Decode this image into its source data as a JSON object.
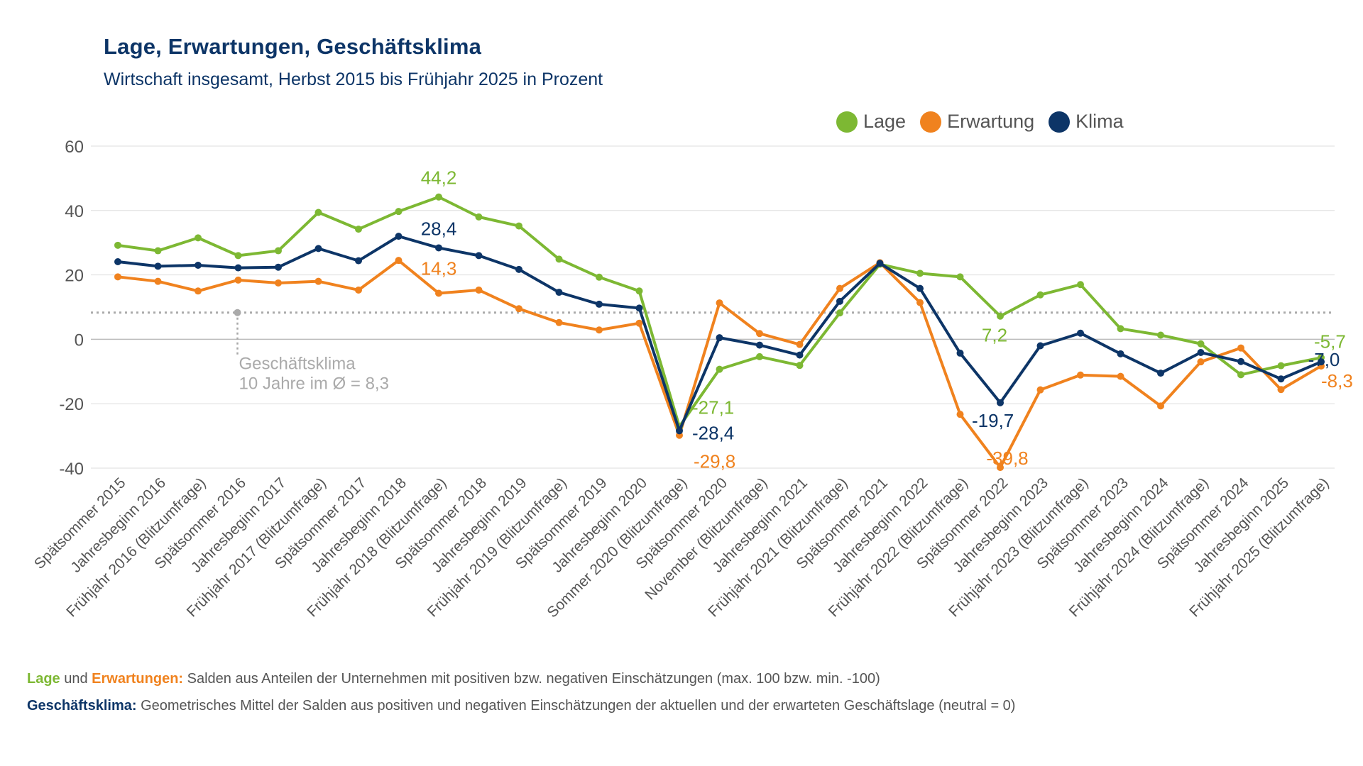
{
  "header": {
    "title": "Lage, Erwartungen, Geschäftsklima",
    "subtitle": "Wirtschaft insgesamt, Herbst 2015 bis Frühjahr 2025 in Prozent"
  },
  "colors": {
    "lage": "#7db833",
    "erwartung": "#f0821e",
    "klima": "#0d3567",
    "grid": "#dddddd",
    "axis_text": "#555555",
    "average": "#aaaaaa"
  },
  "legend": [
    {
      "key": "lage",
      "label": "Lage"
    },
    {
      "key": "erwartung",
      "label": "Erwartung"
    },
    {
      "key": "klima",
      "label": "Klima"
    }
  ],
  "footnotes": {
    "line1_key1": "Lage",
    "line1_and": " und ",
    "line1_key2": "Erwartungen:",
    "line1_text": " Salden aus Anteilen der Unternehmen mit positiven bzw. negativen Einschätzungen (max. 100 bzw. min. -100)",
    "line2_key": "Geschäftsklima:",
    "line2_text": " Geometrisches Mittel der Salden aus positiven und negativen Einschätzungen der aktuellen und der erwarteten Geschäftslage (neutral = 0)"
  },
  "chart_data": {
    "type": "line",
    "title": "Lage, Erwartungen, Geschäftsklima",
    "subtitle": "Wirtschaft insgesamt, Herbst 2015 bis Frühjahr 2025 in Prozent",
    "ylim": [
      -40,
      60
    ],
    "yticks": [
      -40,
      -20,
      0,
      20,
      40,
      60
    ],
    "ytick_labels": [
      "-40",
      "-20",
      "0",
      "20",
      "40",
      "60"
    ],
    "grid": true,
    "legend_position": "top-right",
    "categories": [
      "Spätsommer 2015",
      "Jahresbeginn 2016",
      "Frühjahr 2016 (Blitzumfrage)",
      "Spätsommer 2016",
      "Jahresbeginn 2017",
      "Frühjahr 2017 (Blitzumfrage)",
      "Spätsommer 2017",
      "Jahresbeginn 2018",
      "Frühjahr 2018 (Blitzumfrage)",
      "Spätsommer 2018",
      "Jahresbeginn 2019",
      "Frühjahr 2019 (Blitzumfrage)",
      "Spätsommer 2019",
      "Jahresbeginn 2020",
      "Sommer 2020 (Blitzumfrage)",
      "Spätsommer 2020",
      "November (Blitzumfrage)",
      "Jahresbeginn 2021",
      "Frühjahr 2021 (Blitzumfrage)",
      "Spätsommer 2021",
      "Jahresbeginn 2022",
      "Frühjahr 2022 (Blitzumfrage)",
      "Spätsommer 2022",
      "Jahresbeginn 2023",
      "Frühjahr 2023 (Blitzumfrage)",
      "Spätsommer 2023",
      "Jahresbeginn 2024",
      "Frühjahr 2024 (Blitzumfrage)",
      "Spätsommer 2024",
      "Jahresbeginn 2025",
      "Frühjahr 2025 (Blitzumfrage)"
    ],
    "series": [
      {
        "name": "Lage",
        "key": "lage",
        "values": [
          29.2,
          27.5,
          31.5,
          26.0,
          27.5,
          39.4,
          34.2,
          39.7,
          44.2,
          38.0,
          35.2,
          24.9,
          19.3,
          15.0,
          -27.1,
          -9.3,
          -5.4,
          -8.1,
          8.2,
          23.3,
          20.5,
          19.4,
          7.2,
          13.8,
          17.0,
          3.3,
          1.3,
          -1.4,
          -11.0,
          -8.2,
          -5.7
        ]
      },
      {
        "name": "Erwartung",
        "key": "erwartung",
        "values": [
          19.4,
          18.0,
          15.0,
          18.4,
          17.5,
          18.0,
          15.3,
          24.5,
          14.3,
          15.3,
          9.5,
          5.2,
          2.9,
          5.0,
          -29.8,
          11.3,
          1.8,
          -1.6,
          15.8,
          23.8,
          11.4,
          -23.3,
          -39.8,
          -15.7,
          -11.1,
          -11.5,
          -20.7,
          -7.0,
          -2.7,
          -15.6,
          -8.3
        ]
      },
      {
        "name": "Klima",
        "key": "klima",
        "values": [
          24.1,
          22.7,
          23.0,
          22.2,
          22.4,
          28.2,
          24.4,
          32.0,
          28.4,
          26.0,
          21.7,
          14.6,
          10.9,
          9.7,
          -28.4,
          0.5,
          -1.8,
          -4.9,
          11.8,
          23.6,
          15.8,
          -4.3,
          -19.7,
          -2.0,
          1.9,
          -4.5,
          -10.5,
          -4.1,
          -6.9,
          -12.3,
          -7.0
        ]
      }
    ],
    "average": {
      "value": 8.3,
      "label_line1": "Geschäftsklima",
      "label_line2": "10 Jahre im Ø = 8,3",
      "anchor_index": 3
    },
    "annotations": [
      {
        "series": "lage",
        "index": 8,
        "text": "44,2",
        "pos": "above"
      },
      {
        "series": "klima",
        "index": 8,
        "text": "28,4",
        "pos": "above"
      },
      {
        "series": "erwartung",
        "index": 8,
        "text": "14,3",
        "pos": "right"
      },
      {
        "series": "lage",
        "index": 14,
        "text": "-27,1",
        "pos": "right-down"
      },
      {
        "series": "klima",
        "index": 14,
        "text": "-28,4",
        "pos": "right-down2"
      },
      {
        "series": "erwartung",
        "index": 14,
        "text": "-29,8",
        "pos": "right-down3"
      },
      {
        "series": "lage",
        "index": 22,
        "text": "7,2",
        "pos": "below"
      },
      {
        "series": "klima",
        "index": 22,
        "text": "-19,7",
        "pos": "right-down"
      },
      {
        "series": "erwartung",
        "index": 22,
        "text": "-39,8",
        "pos": "right"
      },
      {
        "series": "lage",
        "index": 30,
        "text": "-5,7",
        "pos": "right-up"
      },
      {
        "series": "klima",
        "index": 30,
        "text": "-7,0",
        "pos": "right"
      },
      {
        "series": "erwartung",
        "index": 30,
        "text": "-8,3",
        "pos": "right-down"
      }
    ]
  }
}
